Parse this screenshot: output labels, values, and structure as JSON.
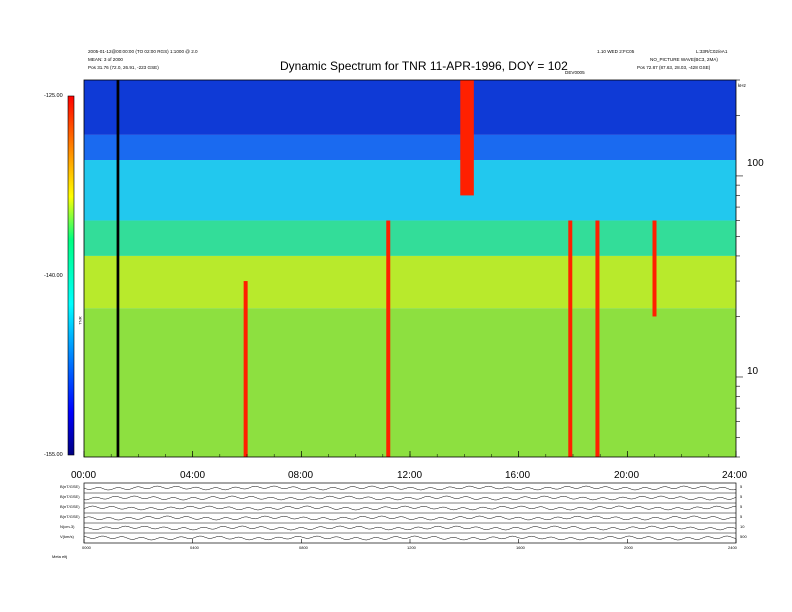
{
  "header": {
    "title": "Dynamic Spectrum for TNR 11-APR-1996, DOY = 102",
    "left_line1": "2005-01-12@00:00:00 (TO 02:00 RGS)  1:1000 @ 2.0",
    "left_line2": "MEAN: 3 of 2000",
    "left_line3": "Pos   31.76 (72.0, 26.91, -223 GSE)",
    "right_top_center": "1.10 WED 2:FC05",
    "right_top_right": "L:33R/C02/eA1",
    "right_line2": "NO_PICTURE  WAVE(BC3, 2MA)",
    "right_line3": "Pos   72.87 (87.63, 28.03, -428 GSE)",
    "mid_label": "DEV0005",
    "khz_label": "kHz"
  },
  "chart_data": [
    {
      "type": "heatmap",
      "title": "Dynamic Spectrum for TNR 11-APR-1996, DOY = 102",
      "xlabel": "",
      "ylabel": "",
      "x_tick_labels": [
        "00:00",
        "04:00",
        "08:00",
        "12:00",
        "16:00",
        "20:00",
        "24:00"
      ],
      "x_range_hours": [
        0,
        24
      ],
      "y_scale": "log",
      "y_range_khz": [
        4,
        300
      ],
      "y_tick_labels": [
        "100",
        "10"
      ],
      "y_unit": "kHz",
      "colorbar": {
        "tick_labels": [
          "-125.00",
          "-140.00",
          "-155.00"
        ],
        "range": [
          -155,
          -125
        ],
        "label": "TNR",
        "colors": [
          "#000080",
          "#0000ff",
          "#00ffff",
          "#00ff80",
          "#ffff00",
          "#ff8000",
          "#ff0000"
        ]
      },
      "background_bands": [
        {
          "from_khz": 160,
          "to_khz": 300,
          "level": -131,
          "color": "#0f3ad6"
        },
        {
          "from_khz": 120,
          "to_khz": 160,
          "level": -133,
          "color": "#1a6af0"
        },
        {
          "from_khz": 60,
          "to_khz": 120,
          "level": -137,
          "color": "#22c8ee"
        },
        {
          "from_khz": 40,
          "to_khz": 60,
          "level": -139,
          "color": "#33dd99"
        },
        {
          "from_khz": 22,
          "to_khz": 40,
          "level": -143,
          "color": "#b8ea2c"
        },
        {
          "from_khz": 4,
          "to_khz": 22,
          "level": -146,
          "color": "#8de040"
        }
      ],
      "features": [
        {
          "name": "data gap",
          "hour_start": 1.2,
          "hour_end": 1.3,
          "color": "#000000"
        },
        {
          "name": "burst 06h",
          "hour": 5.95,
          "khz_low": 4,
          "khz_high": 30,
          "color": "#ff2000"
        },
        {
          "name": "burst 11h",
          "hour": 11.2,
          "khz_low": 4,
          "khz_high": 60,
          "color": "#ff2000"
        },
        {
          "name": "broadband emission 14h",
          "hour_start": 13.85,
          "hour_end": 14.35,
          "khz_low": 80,
          "khz_high": 300,
          "color": "#ff2000"
        },
        {
          "name": "burst 18h",
          "hour": 17.9,
          "khz_low": 4,
          "khz_high": 60,
          "color": "#ff2000"
        },
        {
          "name": "burst 19h",
          "hour": 18.9,
          "khz_low": 4,
          "khz_high": 60,
          "color": "#ff2000"
        },
        {
          "name": "burst 21h",
          "hour": 21.0,
          "khz_low": 20,
          "khz_high": 60,
          "color": "#ff2000"
        }
      ]
    },
    {
      "type": "line",
      "title": "",
      "x_tick_labels": [
        "0000",
        "0400",
        "0800",
        "1200",
        "1600",
        "2000",
        "2400"
      ],
      "x_range_hours": [
        0,
        24
      ],
      "panels": [
        {
          "label": "B(nT/GSE)",
          "right_label": "5"
        },
        {
          "label": "B(nT/GSE)",
          "right_label": "5"
        },
        {
          "label": "B(nT/GSE)",
          "right_label": "5"
        },
        {
          "label": "B(nT/GSE)",
          "right_label": "5"
        },
        {
          "label": "N(cm-3)",
          "right_label": "10"
        },
        {
          "label": "V(km/s)",
          "right_label": "500"
        }
      ],
      "footer_label": "Meta  eltj"
    }
  ]
}
